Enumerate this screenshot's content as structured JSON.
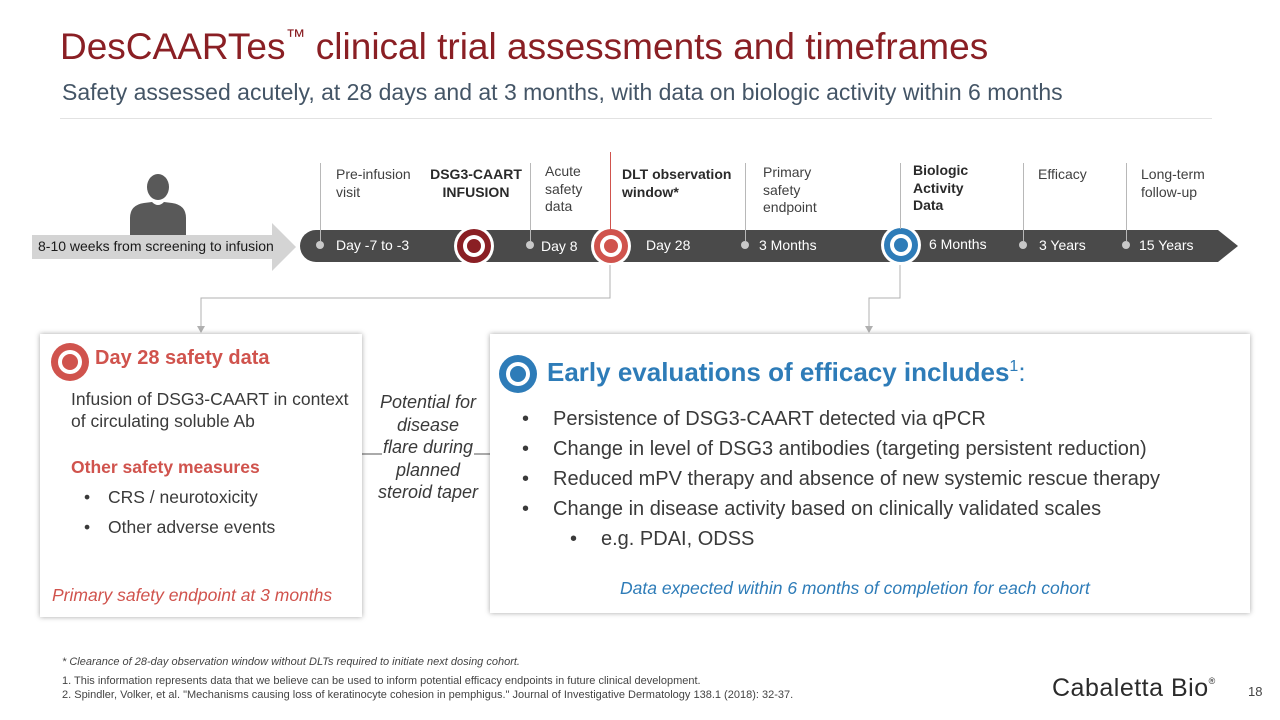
{
  "title": {
    "main": "DesCAARTes",
    "tm": "™",
    "rest": " clinical trial assessments and timeframes"
  },
  "subtitle": "Safety assessed acutely, at 28 days and at 3 months, with data on biologic activity within 6 months",
  "screening_label": "8-10 weeks from screening to infusion",
  "timeline": {
    "labels": [
      "Day -7 to -3",
      "Day 8",
      "Day 28",
      "3 Months",
      "6 Months",
      "3 Years",
      "15 Years"
    ],
    "milestones": {
      "pre_infusion": "Pre-infusion visit",
      "infusion": "DSG3-CAART INFUSION",
      "acute_safety": "Acute safety data",
      "dlt_window": "DLT observation window*",
      "primary_safety": "Primary safety endpoint",
      "biologic": "Biologic Activity Data",
      "efficacy": "Efficacy",
      "long_term": "Long-term follow-up"
    }
  },
  "left_box": {
    "title": "Day 28 safety data",
    "description": "Infusion of DSG3-CAART in context of circulating soluble Ab",
    "other_title": "Other safety measures",
    "bullets": [
      "CRS / neurotoxicity",
      "Other adverse events"
    ],
    "footer": "Primary safety endpoint at 3 months"
  },
  "middle_note": "Potential for disease flare during planned steroid taper",
  "right_box": {
    "title": "Early evaluations of efficacy includes",
    "title_sup": "1",
    "title_suffix": ":",
    "bullets": [
      "Persistence of DSG3-CAART detected via qPCR",
      "Change in level of DSG3 antibodies (targeting persistent reduction)",
      "Reduced mPV therapy and absence of new systemic rescue therapy",
      "Change in disease activity based on clinically validated scales"
    ],
    "sub_bullet": "e.g. PDAI, ODSS",
    "footer": "Data expected within 6 months of completion for each cohort"
  },
  "footnotes": {
    "star": "* Clearance of 28-day observation window without DLTs required to initiate next dosing cohort.",
    "note1": "1. This information represents data that we believe can be used to inform potential efficacy endpoints in future clinical development.",
    "note2": "2. Spindler, Volker, et al. \"Mechanisms causing loss of keratinocyte cohesion in pemphigus.\" Journal of Investigative Dermatology 138.1 (2018): 32-37."
  },
  "logo": {
    "text": "Cabaletta Bio",
    "reg": "®"
  },
  "page_number": "18",
  "icons": {
    "person": "person-silhouette-icon",
    "infusion_target": "target-icon",
    "dlt_target": "target-icon",
    "biologic_target": "target-icon"
  },
  "colors": {
    "title": "#8a1f24",
    "safety_red": "#d0534d",
    "efficacy_blue": "#2e7cb8",
    "timeline": "#4a4a4a",
    "arrow_grey": "#d4d4d4"
  }
}
